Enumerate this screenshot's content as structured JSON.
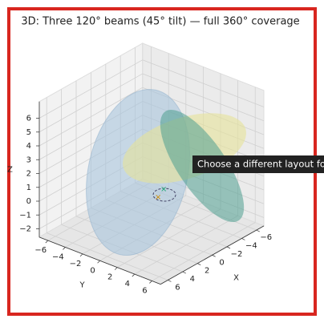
{
  "chart_data": {
    "type": "surface3d",
    "title": "3D: Three 120° beams (45° tilt) — full 360° coverage",
    "xlabel": "X",
    "ylabel": "Y",
    "zlabel": "Z",
    "xlim": [
      -7,
      7
    ],
    "ylim": [
      -7,
      7
    ],
    "zlim": [
      -2.6,
      7.2
    ],
    "xticks": [
      {
        "value": -6,
        "label": "−6"
      },
      {
        "value": -4,
        "label": "−4"
      },
      {
        "value": -2,
        "label": "−2"
      },
      0,
      2,
      4,
      6
    ],
    "yticks": [
      {
        "value": -6,
        "label": "−6"
      },
      {
        "value": -4,
        "label": "−4"
      },
      {
        "value": -2,
        "label": "−2"
      },
      0,
      2,
      4,
      6
    ],
    "zticks": [
      {
        "value": -2,
        "label": "−2"
      },
      {
        "value": -1,
        "label": "−1"
      },
      0,
      1,
      2,
      3,
      4,
      5,
      6
    ],
    "grid": true
  },
  "tooltip": "Choose a different layout for s"
}
